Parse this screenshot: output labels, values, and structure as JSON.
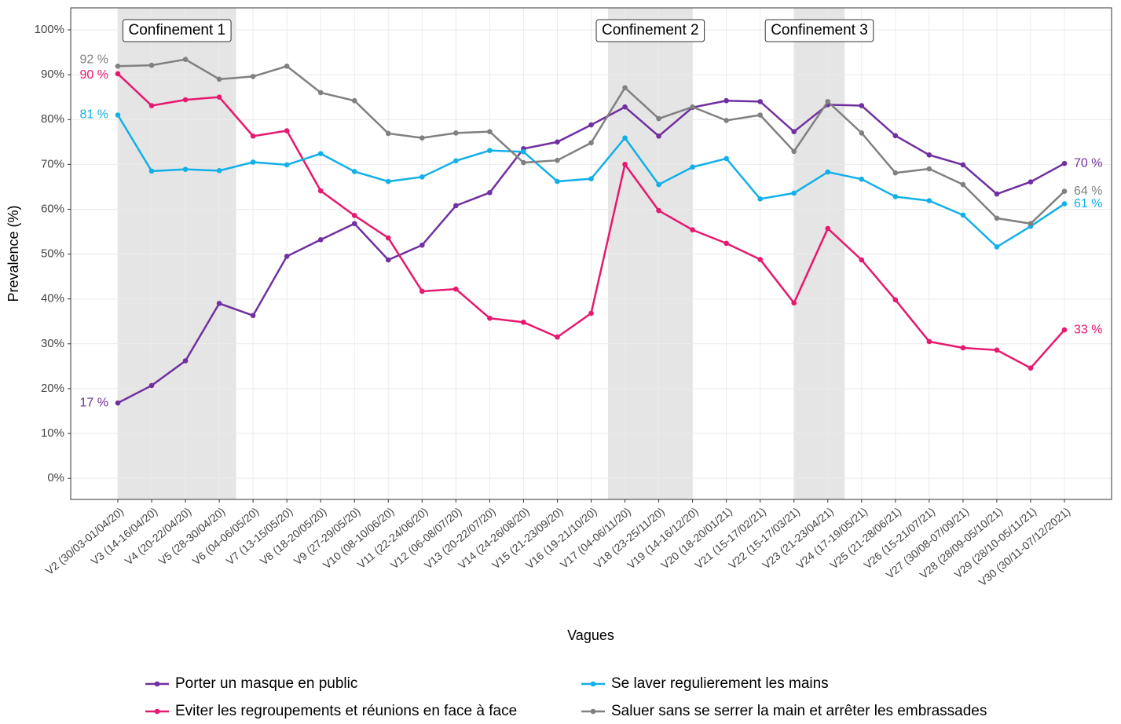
{
  "chart_data": {
    "type": "line",
    "x_label": "Vagues",
    "y_label": "Prevalence (%)",
    "categories": [
      "V2 (30/03-01/04/20)",
      "V3 (14-16/04/20)",
      "V4 (20-22/04/20)",
      "V5 (28-30/04/20)",
      "V6 (04-06/05/20)",
      "V7 (13-15/05/20)",
      "V8 (18-20/05/20)",
      "V9 (27-29/05/20)",
      "V10 (08-10/06/20)",
      "V11 (22-24/06/20)",
      "V12 (06-08/07/20)",
      "V13 (20-22/07/20)",
      "V14 (24-26/08/20)",
      "V15 (21-23/09/20)",
      "V16 (19-21/10/20)",
      "V17 (04-06/11/20)",
      "V18 (23-25/11/20)",
      "V19 (14-16/12/20)",
      "V20 (18-20/01/21)",
      "V21 (15-17/02/21)",
      "V22 (15-17/03/21)",
      "V23 (21-23/04/21)",
      "V24 (17-19/05/21)",
      "V25 (21-28/06/21)",
      "V26 (15-21/07/21)",
      "V27 (30/08-07/09/21)",
      "V28 (28/09-05/10/21)",
      "V29 (28/10-05/11/21)",
      "V30 (30/11-07/12/2021)"
    ],
    "series": [
      {
        "name": "Porter un masque en public",
        "color": "#7030a0",
        "values": [
          16.8,
          20.7,
          26.2,
          39,
          36.3,
          49.5,
          53.2,
          56.8,
          48.7,
          52,
          60.8,
          63.7,
          73.5,
          75,
          78.8,
          82.8,
          76.3,
          82.7,
          84.2,
          84,
          77.3,
          83.3,
          83.1,
          76.4,
          72.1,
          69.9,
          63.4,
          66.1,
          70.2
        ],
        "value_labels": [
          "17 %",
          null,
          null,
          null,
          null,
          null,
          null,
          null,
          null,
          null,
          null,
          null,
          null,
          null,
          null,
          null,
          null,
          null,
          null,
          null,
          null,
          null,
          null,
          null,
          null,
          null,
          null,
          null,
          "70 %"
        ]
      },
      {
        "name": "Eviter les regroupements et réunions en face à face",
        "color": "#e6186f",
        "values": [
          90.2,
          83.1,
          84.4,
          85,
          76.3,
          77.5,
          64.1,
          58.6,
          53.6,
          41.7,
          42.2,
          35.7,
          34.8,
          31.5,
          36.8,
          70,
          59.7,
          55.4,
          52.4,
          48.8,
          39.1,
          55.7,
          48.7,
          39.8,
          30.5,
          29.1,
          28.6,
          24.6,
          33.1
        ],
        "value_labels": [
          "90 %",
          null,
          null,
          null,
          null,
          null,
          null,
          null,
          null,
          null,
          null,
          null,
          null,
          null,
          null,
          null,
          null,
          null,
          null,
          null,
          null,
          null,
          null,
          null,
          null,
          null,
          null,
          null,
          "33 %"
        ]
      },
      {
        "name": "Se laver regulierement les mains",
        "color": "#12b0e8",
        "values": [
          81,
          68.5,
          68.9,
          68.6,
          70.5,
          69.9,
          72.4,
          68.4,
          66.2,
          67.2,
          70.8,
          73.1,
          72.8,
          66.2,
          66.8,
          75.9,
          65.5,
          69.4,
          71.3,
          62.3,
          63.6,
          68.3,
          66.7,
          62.8,
          61.9,
          58.7,
          51.6,
          56.2,
          61.2
        ],
        "value_labels": [
          "81 %",
          null,
          null,
          null,
          null,
          null,
          null,
          null,
          null,
          null,
          null,
          null,
          null,
          null,
          null,
          null,
          null,
          null,
          null,
          null,
          null,
          null,
          null,
          null,
          null,
          null,
          null,
          null,
          "61 %"
        ]
      },
      {
        "name": "Saluer sans se serrer la main et arrêter les embrassades",
        "color": "#808080",
        "values": [
          91.9,
          92.1,
          93.4,
          89,
          89.6,
          91.9,
          86,
          84.2,
          76.9,
          75.9,
          77,
          77.3,
          70.4,
          70.9,
          74.8,
          87.1,
          80.2,
          82.8,
          79.8,
          81,
          72.9,
          84,
          77,
          68.1,
          69,
          65.5,
          58,
          56.8,
          64
        ],
        "value_labels": [
          "92 %",
          null,
          null,
          null,
          null,
          null,
          null,
          null,
          null,
          null,
          null,
          null,
          null,
          null,
          null,
          null,
          null,
          null,
          null,
          null,
          null,
          null,
          null,
          null,
          null,
          null,
          null,
          null,
          "64 %"
        ]
      }
    ],
    "annotations": [
      {
        "text": "Confinement 1",
        "start": 0,
        "end": 3.5
      },
      {
        "text": "Confinement 2",
        "start": 14.5,
        "end": 17
      },
      {
        "text": "Confinement 3",
        "start": 20,
        "end": 21.5
      }
    ],
    "shade_color": "#e5e5e5",
    "ylim": [
      -4.7,
      104.9
    ],
    "yticks": [
      {
        "value": 0,
        "label": "0%"
      },
      {
        "value": 10,
        "label": "10%"
      },
      {
        "value": 20,
        "label": "20%"
      },
      {
        "value": 30,
        "label": "30%"
      },
      {
        "value": 40,
        "label": "40%"
      },
      {
        "value": 50,
        "label": "50%"
      },
      {
        "value": 60,
        "label": "60%"
      },
      {
        "value": 70,
        "label": "70%"
      },
      {
        "value": 80,
        "label": "80%"
      },
      {
        "value": 90,
        "label": "90%"
      },
      {
        "value": 100,
        "label": "100%"
      }
    ],
    "grid": true,
    "legend": "bottom"
  }
}
